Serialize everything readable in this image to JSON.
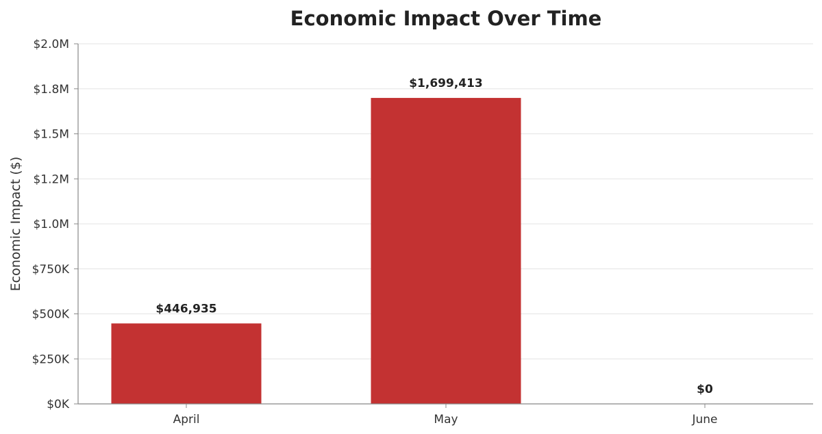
{
  "chart_data": {
    "type": "bar",
    "title": "Economic Impact Over Time",
    "xlabel": "",
    "ylabel": "Economic Impact ($)",
    "categories": [
      "April",
      "May",
      "June"
    ],
    "values": [
      446935,
      1699413,
      0
    ],
    "data_labels": [
      "$446,935",
      "$1,699,413",
      "$0"
    ],
    "ylim": [
      0,
      2000000
    ],
    "yticks": [
      0,
      250000,
      500000,
      750000,
      1000000,
      1250000,
      1500000,
      1750000,
      2000000
    ],
    "ytick_labels": [
      "$0K",
      "$250K",
      "$500K",
      "$750K",
      "$1.0M",
      "$1.2M",
      "$1.5M",
      "$1.8M",
      "$2.0M"
    ],
    "grid": "y",
    "legend": "none",
    "bar_color": "#c33232"
  }
}
